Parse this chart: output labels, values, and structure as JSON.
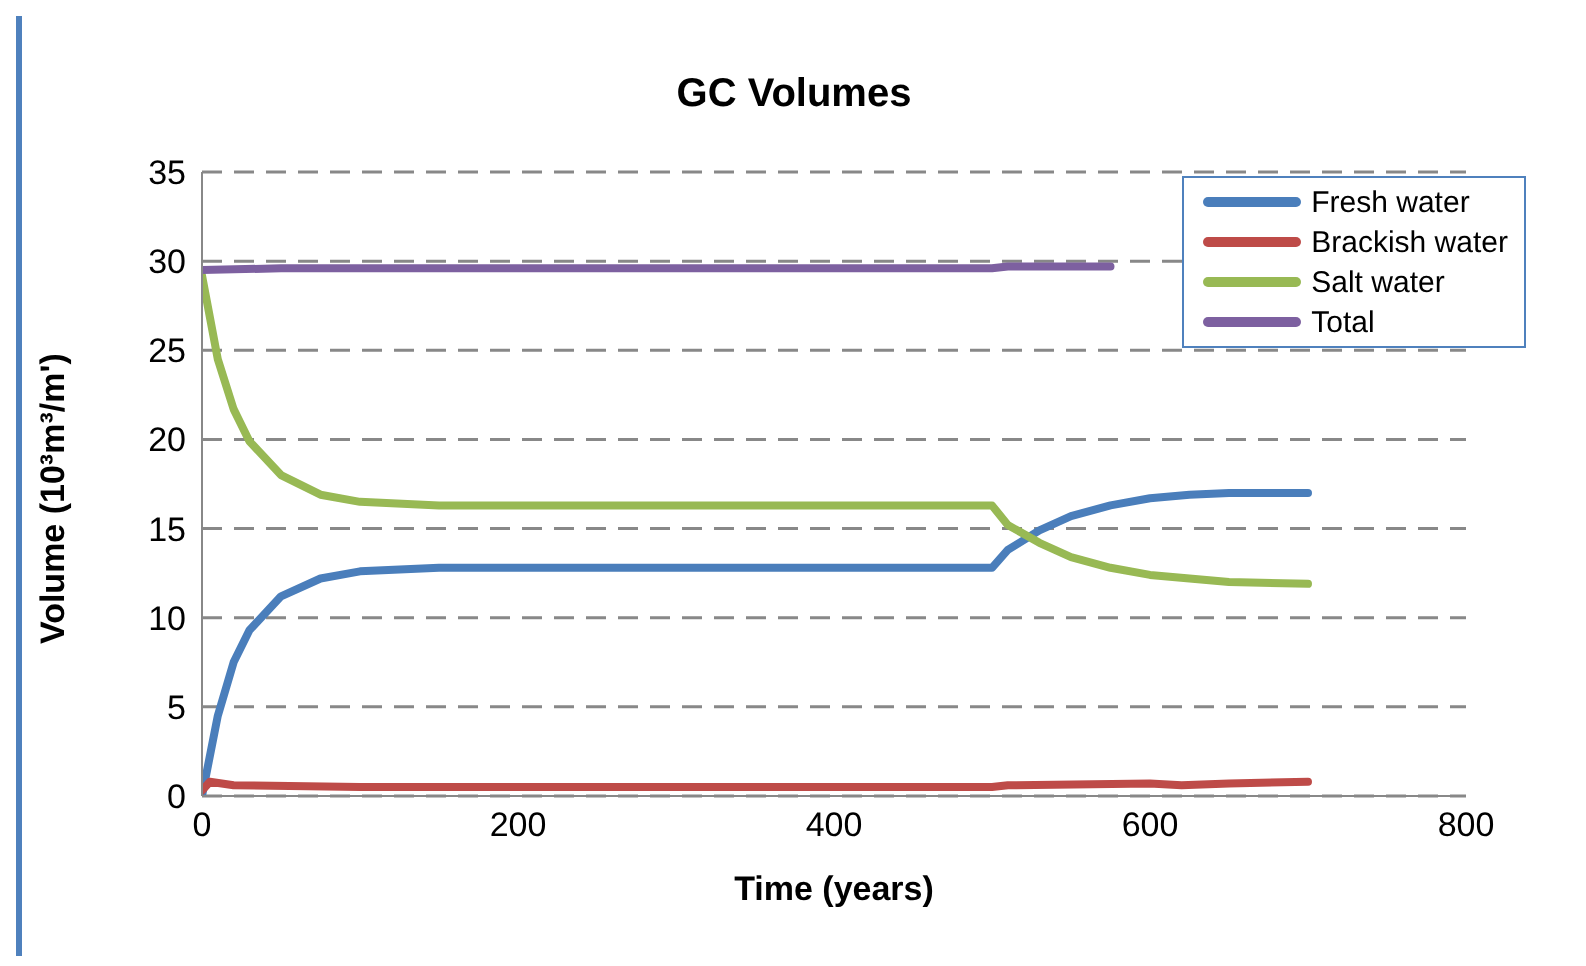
{
  "chart_data": {
    "type": "line",
    "title": "GC Volumes",
    "xlabel": "Time (years)",
    "ylabel": "Volume (10³m³/m')",
    "xlim": [
      0,
      800
    ],
    "xticks": [
      0,
      200,
      400,
      600,
      800
    ],
    "ylim": [
      0,
      35
    ],
    "yticks": [
      0,
      5,
      10,
      15,
      20,
      25,
      30,
      35
    ],
    "grid": "y",
    "legend": "top right",
    "marker": "none",
    "line_style": "solid",
    "series": [
      {
        "name": "Fresh water",
        "color": "#4a7ebb",
        "x": [
          0,
          10,
          20,
          30,
          50,
          75,
          100,
          150,
          200,
          500,
          510,
          530,
          550,
          575,
          600,
          625,
          650,
          700
        ],
        "values": [
          0,
          4.5,
          7.5,
          9.3,
          11.2,
          12.2,
          12.6,
          12.8,
          12.8,
          12.8,
          13.8,
          14.9,
          15.7,
          16.3,
          16.7,
          16.9,
          17,
          17
        ]
      },
      {
        "name": "Brackish water",
        "color": "#be4b48",
        "x": [
          0,
          5,
          20,
          100,
          500,
          510,
          600,
          620,
          650,
          700
        ],
        "values": [
          0.3,
          0.8,
          0.6,
          0.5,
          0.5,
          0.6,
          0.7,
          0.6,
          0.7,
          0.8
        ]
      },
      {
        "name": "Salt water",
        "color": "#98b954",
        "x": [
          0,
          10,
          20,
          30,
          50,
          75,
          100,
          150,
          500,
          510,
          530,
          550,
          575,
          600,
          625,
          650,
          700
        ],
        "values": [
          29.2,
          24.5,
          21.7,
          19.9,
          18,
          16.9,
          16.5,
          16.3,
          16.3,
          15.2,
          14.2,
          13.4,
          12.8,
          12.4,
          12.2,
          12,
          11.9
        ]
      },
      {
        "name": "Total",
        "color": "#7d60a0",
        "x": [
          0,
          50,
          500,
          510,
          575
        ],
        "values": [
          29.5,
          29.6,
          29.6,
          29.7,
          29.7
        ]
      }
    ]
  }
}
